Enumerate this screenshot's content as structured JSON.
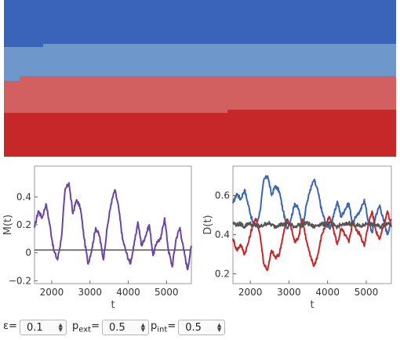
{
  "bands": {
    "colors": [
      "#3a64b8",
      "#6e98cc",
      "#d26060",
      "#c62829"
    ]
  },
  "controls": [
    {
      "symbol": "ε",
      "sub": "",
      "value": "0.1",
      "icon": "spinner-arrows-icon"
    },
    {
      "symbol": "p",
      "sub": "ext",
      "value": "0.5",
      "icon": "spinner-arrows-icon"
    },
    {
      "symbol": "p",
      "sub": "int",
      "value": "0.5",
      "icon": "spinner-arrows-icon"
    }
  ],
  "chart_data": [
    {
      "type": "line",
      "xlabel": "t",
      "ylabel": "M(t)",
      "xlim": [
        1550,
        5650
      ],
      "ylim": [
        -0.22,
        0.62
      ],
      "xticks": [
        2000,
        3000,
        4000,
        5000
      ],
      "yticks": [
        -0.2,
        0,
        0.2,
        0.4
      ],
      "ytick_labels": [
        "−0.2",
        "0",
        "0.2",
        "0.4"
      ],
      "reference_line": 0.02,
      "series": [
        {
          "color": "#6a45a4",
          "x": [
            1550,
            1650,
            1750,
            1850,
            1950,
            2050,
            2150,
            2250,
            2350,
            2450,
            2550,
            2650,
            2750,
            2850,
            2950,
            3050,
            3150,
            3250,
            3350,
            3450,
            3550,
            3650,
            3750,
            3850,
            3950,
            4050,
            4150,
            4250,
            4350,
            4450,
            4550,
            4650,
            4750,
            4850,
            4950,
            5050,
            5150,
            5250,
            5350,
            5450,
            5550,
            5650
          ],
          "y": [
            0.18,
            0.3,
            0.25,
            0.35,
            0.2,
            0.02,
            -0.05,
            0.1,
            0.45,
            0.5,
            0.28,
            0.38,
            0.32,
            0.1,
            -0.08,
            0.03,
            0.18,
            0.12,
            -0.05,
            0.18,
            0.35,
            0.45,
            0.32,
            0.1,
            0.0,
            -0.08,
            0.05,
            0.22,
            0.05,
            0.12,
            0.2,
            -0.02,
            0.08,
            0.1,
            0.25,
            0.02,
            -0.1,
            0.1,
            0.18,
            0.02,
            -0.12,
            0.05
          ]
        }
      ]
    },
    {
      "type": "line",
      "xlabel": "t",
      "ylabel": "D(t)",
      "xlim": [
        1550,
        5650
      ],
      "ylim": [
        0.15,
        0.75
      ],
      "xticks": [
        2000,
        3000,
        4000,
        5000
      ],
      "yticks": [
        0.2,
        0.4,
        0.6
      ],
      "ytick_labels": [
        "0.2",
        "0.4",
        "0.6"
      ],
      "series": [
        {
          "color": "#3a64b8",
          "x": [
            1550,
            1650,
            1750,
            1850,
            1950,
            2050,
            2150,
            2250,
            2350,
            2450,
            2550,
            2650,
            2750,
            2850,
            2950,
            3050,
            3150,
            3250,
            3350,
            3450,
            3550,
            3650,
            3750,
            3850,
            3950,
            4050,
            4150,
            4250,
            4350,
            4450,
            4550,
            4650,
            4750,
            4850,
            4950,
            5050,
            5150,
            5250,
            5350,
            5450,
            5550,
            5650
          ],
          "y": [
            0.56,
            0.61,
            0.58,
            0.63,
            0.55,
            0.47,
            0.44,
            0.52,
            0.68,
            0.7,
            0.6,
            0.65,
            0.62,
            0.52,
            0.43,
            0.48,
            0.56,
            0.53,
            0.44,
            0.55,
            0.63,
            0.68,
            0.62,
            0.52,
            0.46,
            0.43,
            0.49,
            0.57,
            0.49,
            0.53,
            0.56,
            0.45,
            0.5,
            0.52,
            0.58,
            0.47,
            0.41,
            0.5,
            0.55,
            0.47,
            0.4,
            0.48
          ]
        },
        {
          "color": "#c62829",
          "x": [
            1550,
            1650,
            1750,
            1850,
            1950,
            2050,
            2150,
            2250,
            2350,
            2450,
            2550,
            2650,
            2750,
            2850,
            2950,
            3050,
            3150,
            3250,
            3350,
            3450,
            3550,
            3650,
            3750,
            3850,
            3950,
            4050,
            4150,
            4250,
            4350,
            4450,
            4550,
            4650,
            4750,
            4850,
            4950,
            5050,
            5150,
            5250,
            5350,
            5450,
            5550,
            5650
          ],
          "y": [
            0.38,
            0.32,
            0.35,
            0.3,
            0.36,
            0.44,
            0.48,
            0.4,
            0.25,
            0.22,
            0.32,
            0.28,
            0.3,
            0.4,
            0.48,
            0.44,
            0.36,
            0.39,
            0.48,
            0.37,
            0.29,
            0.24,
            0.3,
            0.4,
            0.45,
            0.49,
            0.43,
            0.35,
            0.43,
            0.4,
            0.36,
            0.47,
            0.42,
            0.4,
            0.34,
            0.45,
            0.52,
            0.42,
            0.38,
            0.45,
            0.52,
            0.44
          ]
        },
        {
          "color": "#555555",
          "x": [
            1550,
            1650,
            1750,
            1850,
            1950,
            2050,
            2150,
            2250,
            2350,
            2450,
            2550,
            2650,
            2750,
            2850,
            2950,
            3050,
            3150,
            3250,
            3350,
            3450,
            3550,
            3650,
            3750,
            3850,
            3950,
            4050,
            4150,
            4250,
            4350,
            4450,
            4550,
            4650,
            4750,
            4850,
            4950,
            5050,
            5150,
            5250,
            5350,
            5450,
            5550,
            5650
          ],
          "y": [
            0.46,
            0.45,
            0.455,
            0.44,
            0.46,
            0.45,
            0.45,
            0.44,
            0.45,
            0.46,
            0.45,
            0.44,
            0.455,
            0.45,
            0.46,
            0.45,
            0.44,
            0.45,
            0.45,
            0.46,
            0.45,
            0.44,
            0.45,
            0.455,
            0.45,
            0.46,
            0.45,
            0.44,
            0.45,
            0.45,
            0.46,
            0.45,
            0.45,
            0.44,
            0.45,
            0.46,
            0.45,
            0.45,
            0.44,
            0.45,
            0.46,
            0.45
          ]
        }
      ]
    }
  ]
}
